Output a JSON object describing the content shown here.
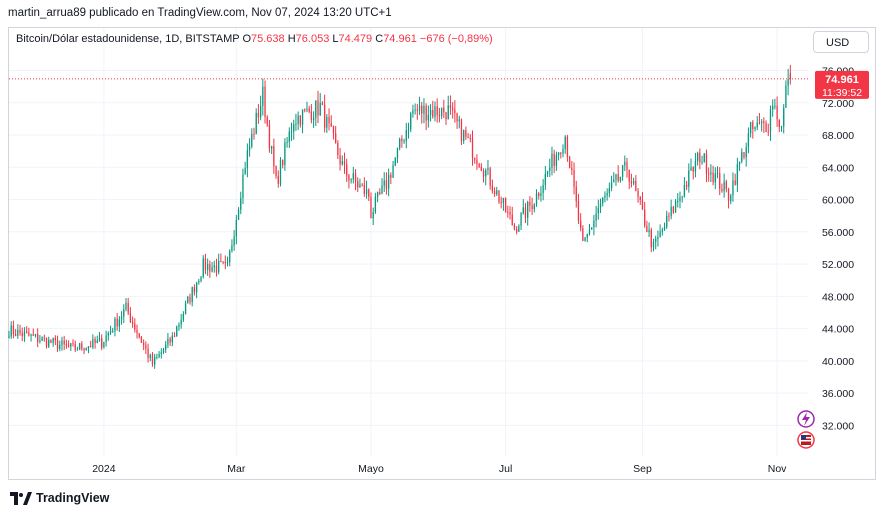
{
  "header": {
    "published_line": "martin_arrua89 publicado en TradingView.com, Nov 07, 2024 13:20 UTC+1"
  },
  "legend": {
    "symbol": "Bitcoin/Dólar estadounidense, 1D, BITSTAMP",
    "o_label": "O",
    "o_value": "75.638",
    "h_label": "H",
    "h_value": "76.053",
    "l_label": "L",
    "l_value": "74.479",
    "c_label": "C",
    "c_value": "74.961",
    "change": "−676 (−0,89%)"
  },
  "currency_button": "USD",
  "price_tag": {
    "price": "74.961",
    "countdown": "11:39:52"
  },
  "footer": {
    "brand": "TradingView"
  },
  "icons": {
    "logo": "tradingview-logo-icon",
    "flash": "lightning-event-icon",
    "flag": "us-flag-event-icon"
  },
  "colors": {
    "up": "#089981",
    "down": "#f23645",
    "grid": "#f0f3fa",
    "text": "#131722",
    "current_price_line": "#f23645"
  },
  "chart_data": {
    "type": "candlestick",
    "symbol": "BTCUSD",
    "timeframe": "1D",
    "y_ticks": [
      "32.000",
      "36.000",
      "40.000",
      "44.000",
      "48.000",
      "52.000",
      "56.000",
      "60.000",
      "64.000",
      "68.000",
      "72.000",
      "76.000"
    ],
    "y_tick_values": [
      32000,
      36000,
      40000,
      44000,
      48000,
      52000,
      56000,
      60000,
      64000,
      68000,
      72000,
      76000
    ],
    "ylim": [
      28200,
      77800
    ],
    "x_ticks": [
      "2024",
      "Mar",
      "Mayo",
      "Jul",
      "Sep",
      "Nov"
    ],
    "x_tick_dates": [
      "2024-01-01",
      "2024-03-01",
      "2024-05-01",
      "2024-07-01",
      "2024-09-01",
      "2024-11-01"
    ],
    "xlim": [
      "2023-11-19",
      "2024-11-15"
    ],
    "grid": true,
    "current_price": 74961,
    "anchors": [
      {
        "date": "2023-11-19",
        "close": 43800
      },
      {
        "date": "2023-12-05",
        "close": 42500
      },
      {
        "date": "2023-12-18",
        "close": 41500
      },
      {
        "date": "2023-12-31",
        "close": 42300
      },
      {
        "date": "2024-01-11",
        "close": 46500
      },
      {
        "date": "2024-01-23",
        "close": 39600
      },
      {
        "date": "2024-02-01",
        "close": 42800
      },
      {
        "date": "2024-02-15",
        "close": 51800
      },
      {
        "date": "2024-02-26",
        "close": 51500
      },
      {
        "date": "2024-03-05",
        "close": 64500
      },
      {
        "date": "2024-03-13",
        "close": 73000
      },
      {
        "date": "2024-03-19",
        "close": 62000
      },
      {
        "date": "2024-03-27",
        "close": 70000
      },
      {
        "date": "2024-04-08",
        "close": 71500
      },
      {
        "date": "2024-04-19",
        "close": 63500
      },
      {
        "date": "2024-04-30",
        "close": 60500
      },
      {
        "date": "2024-05-01",
        "close": 58300
      },
      {
        "date": "2024-05-08",
        "close": 62000
      },
      {
        "date": "2024-05-20",
        "close": 71000
      },
      {
        "date": "2024-06-05",
        "close": 71000
      },
      {
        "date": "2024-06-20",
        "close": 64500
      },
      {
        "date": "2024-07-05",
        "close": 56500
      },
      {
        "date": "2024-07-14",
        "close": 60000
      },
      {
        "date": "2024-07-28",
        "close": 68000
      },
      {
        "date": "2024-08-05",
        "close": 54000
      },
      {
        "date": "2024-08-12",
        "close": 59000
      },
      {
        "date": "2024-08-25",
        "close": 64000
      },
      {
        "date": "2024-09-06",
        "close": 54000
      },
      {
        "date": "2024-09-18",
        "close": 60500
      },
      {
        "date": "2024-09-27",
        "close": 65500
      },
      {
        "date": "2024-10-10",
        "close": 60500
      },
      {
        "date": "2024-10-20",
        "close": 68500
      },
      {
        "date": "2024-10-28",
        "close": 69500
      },
      {
        "date": "2024-10-30",
        "close": 72300
      },
      {
        "date": "2024-11-03",
        "close": 68800
      },
      {
        "date": "2024-11-06",
        "close": 75600
      },
      {
        "date": "2024-11-07",
        "close": 74961
      }
    ]
  }
}
